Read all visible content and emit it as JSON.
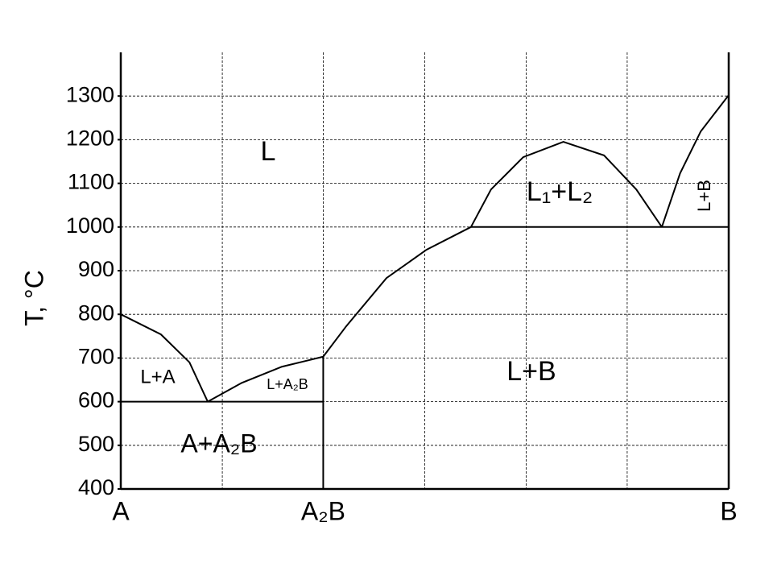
{
  "chart_data": {
    "type": "line",
    "y_label": "T, °C",
    "x_label_note": null,
    "xlim": [
      0,
      100
    ],
    "ylim": [
      400,
      1400
    ],
    "yticks": [
      400,
      500,
      600,
      700,
      800,
      900,
      1000,
      1100,
      1200,
      1300
    ],
    "xticks": [
      {
        "value": 0,
        "label": "A"
      },
      {
        "value": 33.3,
        "label": "A₂B"
      },
      {
        "value": 100,
        "label": "B"
      }
    ],
    "xgrid": [
      16.7,
      33.3,
      50,
      66.7,
      83.3
    ],
    "grid": true,
    "color": "#000000",
    "curves": [
      {
        "x": [
          0,
          6.6,
          11.3,
          14.3
        ],
        "y": [
          800,
          754,
          690,
          600
        ]
      },
      {
        "x": [
          14.3,
          19.9,
          26.5,
          33.3
        ],
        "y": [
          600,
          643,
          680,
          703
        ]
      },
      {
        "x": [
          33.3,
          37.1,
          43.7,
          50.3,
          57.6
        ],
        "y": [
          703,
          773,
          883,
          948,
          1000
        ]
      },
      {
        "x": [
          57.6,
          60.9,
          66.2,
          72.8,
          79.5,
          84.8,
          89.0
        ],
        "y": [
          1000,
          1086,
          1160,
          1195,
          1164,
          1086,
          1000
        ]
      },
      {
        "x": [
          89.0,
          92.0,
          95.4,
          100
        ],
        "y": [
          1000,
          1123,
          1219,
          1302
        ]
      },
      {
        "x": [
          0,
          33.3
        ],
        "y": [
          600,
          600
        ]
      },
      {
        "x": [
          33.3,
          33.3
        ],
        "y": [
          400,
          703
        ]
      },
      {
        "x": [
          57.6,
          100
        ],
        "y": [
          1000,
          1000
        ]
      }
    ],
    "annotations": [
      "L",
      "L+A",
      "L+A₂B",
      "A+A₂B",
      "L+B",
      "L₁+L₂",
      "L+B"
    ]
  }
}
